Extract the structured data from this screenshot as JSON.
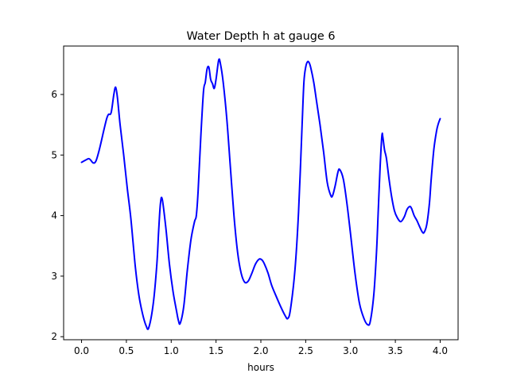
{
  "chart_data": {
    "type": "line",
    "title": "Water Depth h at gauge 6",
    "xlabel": "hours",
    "ylabel": "",
    "xlim": [
      -0.2,
      4.2
    ],
    "ylim": [
      1.95,
      6.8
    ],
    "xticks": [
      0.0,
      0.5,
      1.0,
      1.5,
      2.0,
      2.5,
      3.0,
      3.5,
      4.0
    ],
    "xtick_labels": [
      "0.0",
      "0.5",
      "1.0",
      "1.5",
      "2.0",
      "2.5",
      "3.0",
      "3.5",
      "4.0"
    ],
    "yticks": [
      2,
      3,
      4,
      5,
      6
    ],
    "ytick_labels": [
      "2",
      "3",
      "4",
      "5",
      "6"
    ],
    "grid": false,
    "series": [
      {
        "color": "#0000ff",
        "x": [
          0.0,
          0.05,
          0.08,
          0.1,
          0.13,
          0.16,
          0.2,
          0.25,
          0.28,
          0.3,
          0.33,
          0.36,
          0.38,
          0.4,
          0.43,
          0.47,
          0.51,
          0.55,
          0.6,
          0.64,
          0.68,
          0.72,
          0.75,
          0.8,
          0.84,
          0.86,
          0.88,
          0.9,
          0.94,
          0.98,
          1.02,
          1.06,
          1.08,
          1.1,
          1.14,
          1.18,
          1.22,
          1.26,
          1.28,
          1.3,
          1.33,
          1.36,
          1.38,
          1.4,
          1.42,
          1.44,
          1.46,
          1.48,
          1.5,
          1.53,
          1.55,
          1.58,
          1.62,
          1.66,
          1.7,
          1.74,
          1.78,
          1.82,
          1.86,
          1.9,
          1.94,
          1.98,
          2.01,
          2.04,
          2.08,
          2.12,
          2.17,
          2.22,
          2.27,
          2.3,
          2.33,
          2.38,
          2.42,
          2.46,
          2.48,
          2.5,
          2.52,
          2.54,
          2.56,
          2.59,
          2.62,
          2.66,
          2.7,
          2.74,
          2.78,
          2.8,
          2.83,
          2.86,
          2.88,
          2.92,
          2.96,
          3.0,
          3.05,
          3.1,
          3.15,
          3.19,
          3.22,
          3.26,
          3.29,
          3.31,
          3.33,
          3.35,
          3.36,
          3.38,
          3.4,
          3.43,
          3.46,
          3.49,
          3.52,
          3.56,
          3.6,
          3.63,
          3.66,
          3.68,
          3.71,
          3.74,
          3.77,
          3.8,
          3.82,
          3.85,
          3.88,
          3.9,
          3.93,
          3.96,
          3.98,
          4.0
        ],
        "y": [
          4.88,
          4.92,
          4.94,
          4.92,
          4.87,
          4.9,
          5.1,
          5.42,
          5.6,
          5.67,
          5.7,
          6.0,
          6.12,
          5.95,
          5.5,
          5.0,
          4.45,
          3.95,
          3.15,
          2.68,
          2.38,
          2.18,
          2.15,
          2.55,
          3.2,
          3.75,
          4.2,
          4.27,
          3.8,
          3.2,
          2.75,
          2.42,
          2.27,
          2.22,
          2.5,
          3.1,
          3.6,
          3.9,
          4.0,
          4.4,
          5.3,
          6.05,
          6.2,
          6.42,
          6.45,
          6.25,
          6.18,
          6.1,
          6.25,
          6.57,
          6.5,
          6.2,
          5.6,
          4.8,
          4.0,
          3.4,
          3.05,
          2.9,
          2.92,
          3.05,
          3.2,
          3.28,
          3.27,
          3.2,
          3.05,
          2.85,
          2.67,
          2.5,
          2.35,
          2.3,
          2.45,
          3.1,
          4.05,
          5.5,
          6.2,
          6.45,
          6.54,
          6.52,
          6.42,
          6.2,
          5.9,
          5.5,
          5.05,
          4.55,
          4.33,
          4.33,
          4.5,
          4.72,
          4.76,
          4.6,
          4.2,
          3.7,
          3.05,
          2.55,
          2.3,
          2.2,
          2.25,
          2.7,
          3.4,
          4.1,
          4.8,
          5.32,
          5.3,
          5.08,
          4.95,
          4.6,
          4.3,
          4.08,
          3.97,
          3.9,
          3.98,
          4.1,
          4.15,
          4.12,
          4.0,
          3.92,
          3.82,
          3.73,
          3.72,
          3.85,
          4.2,
          4.6,
          5.1,
          5.4,
          5.52,
          5.6
        ]
      }
    ]
  }
}
